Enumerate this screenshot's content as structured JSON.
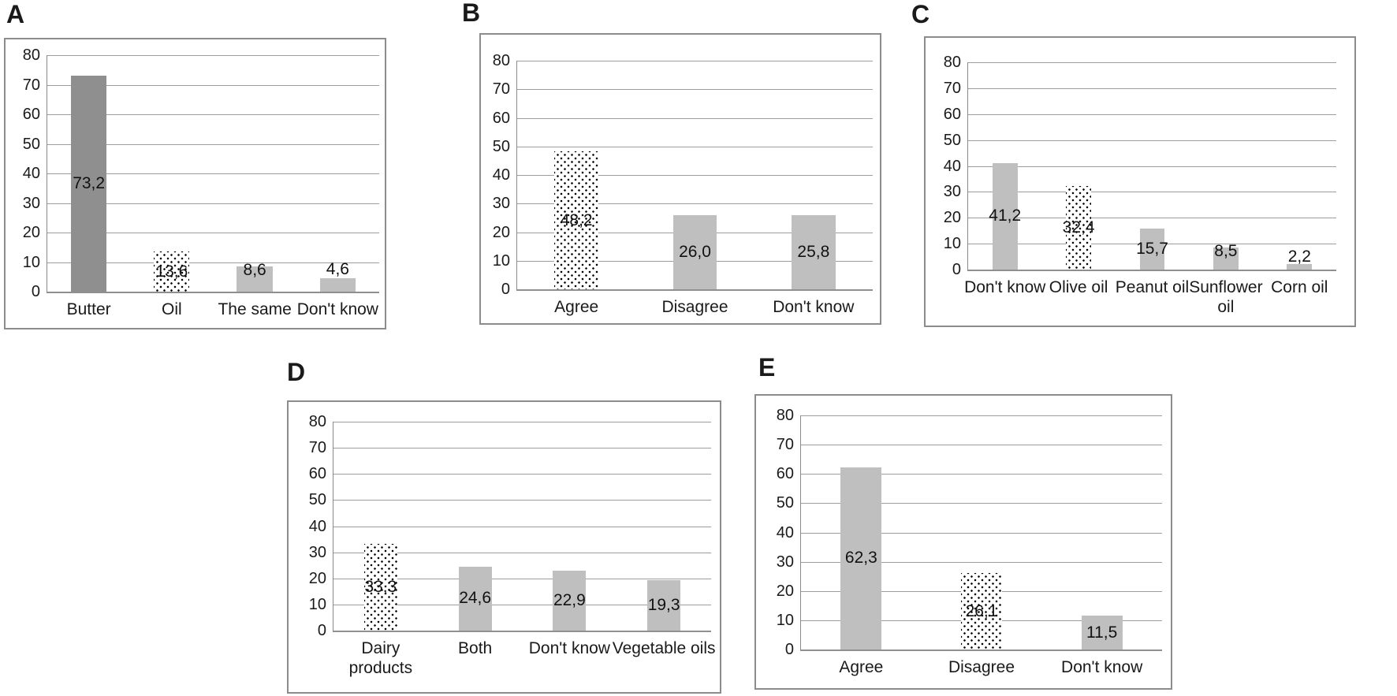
{
  "figure_title": "",
  "colors": {
    "bar_solid_light": "#bfbfbf",
    "bar_solid_dark": "#8f8f8f",
    "bar_dotted_dot": "#000000",
    "bar_dotted_background": "#ffffff",
    "gridline": "#9d9d9d",
    "axis": "#8a8a8a",
    "panel_border": "#8c8c8c",
    "text": "#1a1a1a"
  },
  "chart_data": [
    {
      "panel": "A",
      "type": "bar",
      "title": "",
      "xlabel": "",
      "ylabel": "",
      "ylim": [
        0,
        80
      ],
      "yticks": [
        0,
        10,
        20,
        30,
        40,
        50,
        60,
        70,
        80
      ],
      "grid": true,
      "legend": "none",
      "categories": [
        "Butter",
        "Oil",
        "The same",
        "Don't know"
      ],
      "values": [
        73.2,
        13.6,
        8.6,
        4.6
      ],
      "value_labels": [
        "73,2",
        "13,6",
        "8,6",
        "4,6"
      ],
      "bar_styles": [
        "solid_dark",
        "dotted",
        "solid_light",
        "solid_light"
      ]
    },
    {
      "panel": "B",
      "type": "bar",
      "title": "",
      "xlabel": "",
      "ylabel": "",
      "ylim": [
        0,
        80
      ],
      "yticks": [
        0,
        10,
        20,
        30,
        40,
        50,
        60,
        70,
        80
      ],
      "grid": true,
      "legend": "none",
      "categories": [
        "Agree",
        "Disagree",
        "Don't know"
      ],
      "values": [
        48.2,
        26.0,
        25.8
      ],
      "value_labels": [
        "48,2",
        "26,0",
        "25,8"
      ],
      "bar_styles": [
        "dotted",
        "solid_light",
        "solid_light"
      ]
    },
    {
      "panel": "C",
      "type": "bar",
      "title": "",
      "xlabel": "",
      "ylabel": "",
      "ylim": [
        0,
        80
      ],
      "yticks": [
        0,
        10,
        20,
        30,
        40,
        50,
        60,
        70,
        80
      ],
      "grid": true,
      "legend": "none",
      "categories": [
        "Don't know",
        "Olive oil",
        "Peanut oil",
        "Sunflower\noil",
        "Corn oil"
      ],
      "values": [
        41.2,
        32.4,
        15.7,
        8.5,
        2.2
      ],
      "value_labels": [
        "41,2",
        "32,4",
        "15,7",
        "8,5",
        "2,2"
      ],
      "bar_styles": [
        "solid_light",
        "dotted",
        "solid_light",
        "solid_light",
        "solid_light"
      ]
    },
    {
      "panel": "D",
      "type": "bar",
      "title": "",
      "xlabel": "",
      "ylabel": "",
      "ylim": [
        0,
        80
      ],
      "yticks": [
        0,
        10,
        20,
        30,
        40,
        50,
        60,
        70,
        80
      ],
      "grid": true,
      "legend": "none",
      "categories": [
        "Dairy\nproducts",
        "Both",
        "Don't know",
        "Vegetable oils"
      ],
      "values": [
        33.3,
        24.6,
        22.9,
        19.3
      ],
      "value_labels": [
        "33,3",
        "24,6",
        "22,9",
        "19,3"
      ],
      "bar_styles": [
        "dotted",
        "solid_light",
        "solid_light",
        "solid_light"
      ]
    },
    {
      "panel": "E",
      "type": "bar",
      "title": "",
      "xlabel": "",
      "ylabel": "",
      "ylim": [
        0,
        80
      ],
      "yticks": [
        0,
        10,
        20,
        30,
        40,
        50,
        60,
        70,
        80
      ],
      "grid": true,
      "legend": "none",
      "categories": [
        "Agree",
        "Disagree",
        "Don't know"
      ],
      "values": [
        62.3,
        26.1,
        11.5
      ],
      "value_labels": [
        "62,3",
        "26,1",
        "11,5"
      ],
      "bar_styles": [
        "solid_light",
        "dotted",
        "solid_light"
      ]
    }
  ]
}
